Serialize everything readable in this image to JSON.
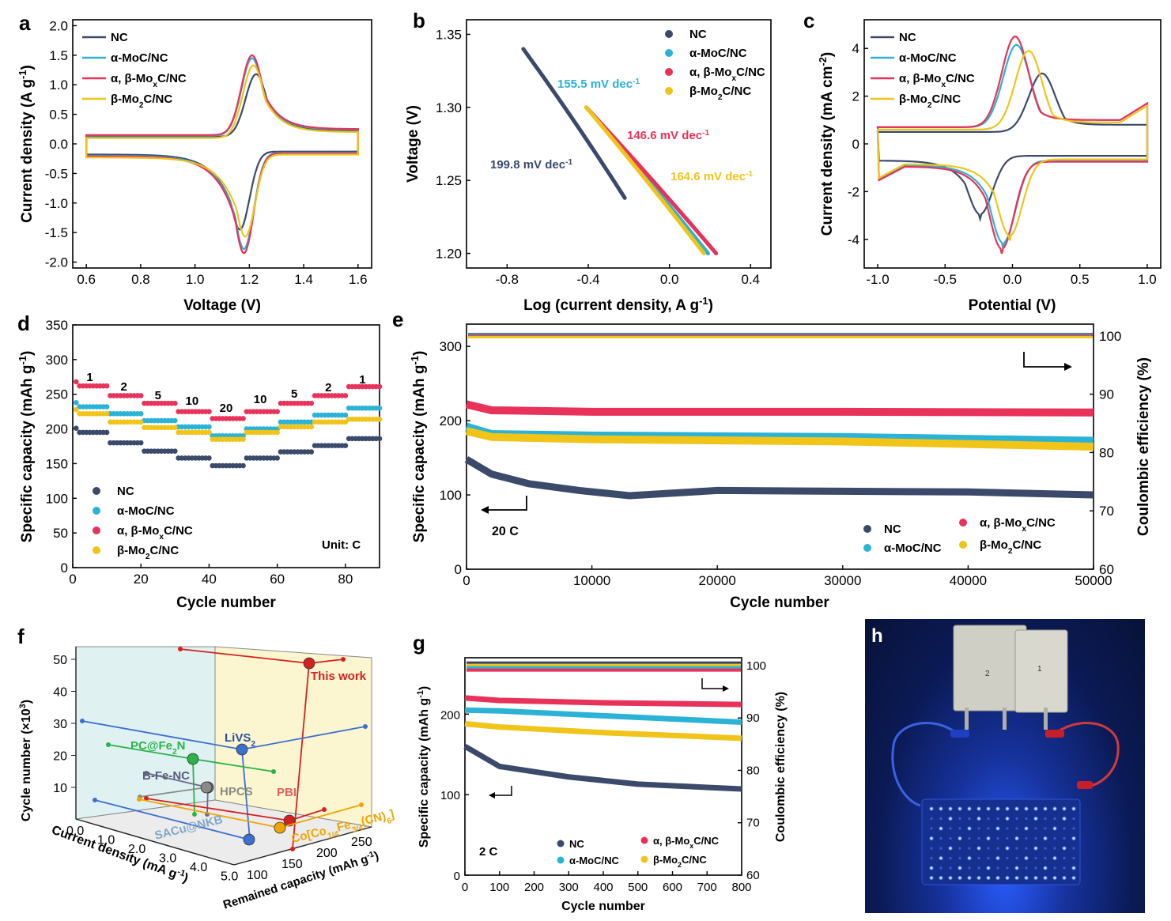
{
  "colors": {
    "NC": "#3b4a6b",
    "aMoC": "#2ab3d6",
    "ab": "#e8325a",
    "b": "#f0c419",
    "red": "#d62020",
    "orange": "#f0a500",
    "blue": "#3b6fd0",
    "gray": "#8a8a8a",
    "green": "#2bb34a"
  },
  "legend_labels": {
    "NC": "NC",
    "aMoC": "α-MoC/NC",
    "ab": "α, β-MoxC/NC",
    "b": "β-Mo2C/NC"
  },
  "panel_labels": {
    "a": "a",
    "b": "b",
    "c": "c",
    "d": "d",
    "e": "e",
    "f": "f",
    "g": "g",
    "h": "h"
  },
  "chart_data": [
    {
      "panel": "a",
      "type": "line",
      "xlabel": "Voltage (V)",
      "ylabel": "Current density (A g-1)",
      "xlim": [
        0.55,
        1.65
      ],
      "ylim": [
        -2.1,
        2.1
      ],
      "xticks": [
        "0.6",
        "0.8",
        "1.0",
        "1.2",
        "1.4",
        "1.6"
      ],
      "yticks": [
        "-2.0",
        "-1.5",
        "-1.0",
        "-0.5",
        "0.0",
        "0.5",
        "1.0",
        "1.5",
        "2.0"
      ],
      "series": [
        {
          "name": "NC",
          "ox_peak": [
            1.225,
            1.18
          ],
          "red_peak": [
            1.165,
            -1.45
          ],
          "upper_base": 0.12,
          "lower_base": -0.13
        },
        {
          "name": "α-MoC/NC",
          "ox_peak": [
            1.21,
            1.45
          ],
          "red_peak": [
            1.18,
            -1.78
          ],
          "upper_base": 0.14,
          "lower_base": -0.15
        },
        {
          "name": "α, β-MoxC/NC",
          "ox_peak": [
            1.21,
            1.5
          ],
          "red_peak": [
            1.18,
            -1.85
          ],
          "upper_base": 0.15,
          "lower_base": -0.16
        },
        {
          "name": "β-Mo2C/NC",
          "ox_peak": [
            1.215,
            1.33
          ],
          "red_peak": [
            1.185,
            -1.57
          ],
          "upper_base": 0.1,
          "lower_base": -0.18
        }
      ]
    },
    {
      "panel": "b",
      "type": "line",
      "xlabel": "Log (current density, A g-1)",
      "ylabel": "Voltage (V)",
      "xlim": [
        -1.0,
        0.5
      ],
      "ylim": [
        1.19,
        1.36
      ],
      "xticks": [
        "-0.8",
        "-0.4",
        "0.0",
        "0.4"
      ],
      "yticks": [
        "1.20",
        "1.25",
        "1.30",
        "1.35"
      ],
      "series": [
        {
          "name": "NC",
          "x": [
            -0.72,
            -0.22
          ],
          "y": [
            1.34,
            1.238
          ],
          "slope_label": "199.8 mV dec-1"
        },
        {
          "name": "α-MoC/NC",
          "x": [
            -0.41,
            0.19
          ],
          "y": [
            1.3,
            1.2
          ],
          "slope_label": "155.5 mV dec-1"
        },
        {
          "name": "α, β-MoxC/NC",
          "x": [
            -0.41,
            0.23
          ],
          "y": [
            1.3,
            1.2
          ],
          "slope_label": "146.6 mV dec-1"
        },
        {
          "name": "β-Mo2C/NC",
          "x": [
            -0.41,
            0.17
          ],
          "y": [
            1.3,
            1.2
          ],
          "slope_label": "164.6 mV dec-1"
        }
      ]
    },
    {
      "panel": "c",
      "type": "line",
      "xlabel": "Potential (V)",
      "ylabel": "Current density (mA cm-2)",
      "xlim": [
        -1.1,
        1.1
      ],
      "ylim": [
        -5.2,
        5.2
      ],
      "xticks": [
        "-1.0",
        "-0.5",
        "0.0",
        "0.5",
        "1.0"
      ],
      "yticks": [
        "-4",
        "-2",
        "0",
        "2",
        "4"
      ],
      "series": [
        {
          "name": "NC",
          "ox_peak": [
            0.22,
            2.95
          ],
          "red_peak": [
            -0.24,
            -2.95
          ]
        },
        {
          "name": "α-MoC/NC",
          "ox_peak": [
            0.03,
            4.15
          ],
          "red_peak": [
            -0.07,
            -4.15
          ]
        },
        {
          "name": "α, β-MoxC/NC",
          "ox_peak": [
            0.02,
            4.5
          ],
          "red_peak": [
            -0.08,
            -4.4
          ]
        },
        {
          "name": "β-Mo2C/NC",
          "ox_peak": [
            0.12,
            3.9
          ],
          "red_peak": [
            -0.02,
            -3.85
          ]
        }
      ]
    },
    {
      "panel": "d",
      "type": "scatter",
      "xlabel": "Cycle number",
      "ylabel": "Specific capacity (mAh g-1)",
      "xlim": [
        0,
        90
      ],
      "ylim": [
        0,
        350
      ],
      "xticks": [
        "0",
        "20",
        "40",
        "60",
        "80"
      ],
      "yticks": [
        "0",
        "50",
        "100",
        "150",
        "200",
        "250",
        "300",
        "350"
      ],
      "rate_labels": [
        "1",
        "2",
        "5",
        "10",
        "20",
        "10",
        "5",
        "2",
        "1"
      ],
      "unit_note": "Unit: C",
      "series": [
        {
          "name": "NC",
          "values": [
            195,
            180,
            168,
            158,
            147,
            158,
            167,
            176,
            186
          ]
        },
        {
          "name": "α-MoC/NC",
          "values": [
            232,
            222,
            212,
            203,
            190,
            200,
            210,
            220,
            230
          ]
        },
        {
          "name": "α, β-MoxC/NC",
          "values": [
            262,
            248,
            237,
            225,
            215,
            225,
            237,
            248,
            261
          ]
        },
        {
          "name": "β-Mo2C/NC",
          "values": [
            222,
            210,
            202,
            195,
            185,
            195,
            203,
            210,
            214
          ]
        }
      ]
    },
    {
      "panel": "e",
      "type": "scatter",
      "xlabel": "Cycle number",
      "ylabel": "Specific capacity (mAh g-1)",
      "y2label": "Coulombic efficiency (%)",
      "xlim": [
        0,
        50000
      ],
      "ylim": [
        0,
        330
      ],
      "y2lim": [
        60,
        102
      ],
      "xticks": [
        "0",
        "10000",
        "20000",
        "30000",
        "40000",
        "50000"
      ],
      "yticks": [
        "0",
        "100",
        "200",
        "300"
      ],
      "y2ticks": [
        "60",
        "70",
        "80",
        "90",
        "100"
      ],
      "rate_note": "20 C",
      "series": [
        {
          "name": "NC",
          "x": [
            0,
            2000,
            5000,
            9000,
            13000,
            20000,
            30000,
            40000,
            50000
          ],
          "y": [
            148,
            128,
            115,
            106,
            99,
            106,
            105,
            104,
            100
          ]
        },
        {
          "name": "α-MoC/NC",
          "x": [
            0,
            2000,
            10000,
            30000,
            50000
          ],
          "y": [
            192,
            182,
            180,
            178,
            173
          ]
        },
        {
          "name": "α, β-MoxC/NC",
          "x": [
            0,
            2000,
            10000,
            30000,
            50000
          ],
          "y": [
            222,
            214,
            212,
            212,
            211
          ]
        },
        {
          "name": "β-Mo2C/NC",
          "x": [
            0,
            2000,
            10000,
            30000,
            50000
          ],
          "y": [
            186,
            178,
            175,
            172,
            165
          ]
        },
        {
          "name": "CE",
          "value": 100
        }
      ]
    },
    {
      "panel": "g",
      "type": "scatter",
      "xlabel": "Cycle number",
      "ylabel": "Specific capacity (mAh g-1)",
      "y2label": "Coulombic efficiency (%)",
      "xlim": [
        0,
        800
      ],
      "ylim": [
        0,
        270
      ],
      "y2lim": [
        60,
        101.5
      ],
      "xticks": [
        "0",
        "100",
        "200",
        "300",
        "400",
        "500",
        "600",
        "700",
        "800"
      ],
      "yticks": [
        "0",
        "100",
        "200"
      ],
      "y2ticks": [
        "60",
        "70",
        "80",
        "90",
        "100"
      ],
      "rate_note": "2 C",
      "series": [
        {
          "name": "NC",
          "x": [
            0,
            100,
            300,
            500,
            800
          ],
          "y": [
            160,
            135,
            122,
            113,
            107
          ]
        },
        {
          "name": "α-MoC/NC",
          "x": [
            0,
            100,
            400,
            800
          ],
          "y": [
            205,
            204,
            198,
            190
          ]
        },
        {
          "name": "α, β-MoxC/NC",
          "x": [
            0,
            100,
            400,
            800
          ],
          "y": [
            220,
            217,
            214,
            212
          ]
        },
        {
          "name": "β-Mo2C/NC",
          "x": [
            0,
            100,
            400,
            800
          ],
          "y": [
            188,
            184,
            177,
            170
          ]
        },
        {
          "name": "CE",
          "value": 99.6
        }
      ]
    },
    {
      "panel": "f",
      "type": "scatter",
      "xlabel": "Current density (mA g-1)",
      "ylabel": "Cycle number (×10^3)",
      "zlabel": "Remained capacity (mAh g-1)",
      "yticks": [
        "10",
        "20",
        "30",
        "40",
        "50"
      ],
      "xticks": [
        "0.0",
        "1.0",
        "2.0",
        "3.0",
        "4.0",
        "5.0"
      ],
      "zticks": [
        "100",
        "150",
        "200",
        "250"
      ],
      "points": [
        {
          "label": "This work",
          "current": 5.0,
          "cycles": 50,
          "capacity": 211
        },
        {
          "label": "LiVS2",
          "current": 5.0,
          "cycles": 30,
          "capacity": 250
        },
        {
          "label": "PC@Fe2N",
          "current": 2.0,
          "cycles": 22,
          "capacity": 175
        },
        {
          "label": "B-Fe-NC",
          "current": 2.0,
          "cycles": 15,
          "capacity": 160
        },
        {
          "label": "HPCS",
          "current": 3.0,
          "cycles": 11,
          "capacity": 145
        },
        {
          "label": "PBI",
          "current": 5.0,
          "cycles": 5,
          "capacity": 190
        },
        {
          "label": "Co[Co1/4Fe3/4(CN)6]",
          "current": 2.0,
          "cycles": 5,
          "capacity": 230
        },
        {
          "label": "SACu@NKB",
          "current": 5.0,
          "cycles": 10,
          "capacity": 120
        }
      ]
    }
  ],
  "photo": {
    "label": "h"
  }
}
